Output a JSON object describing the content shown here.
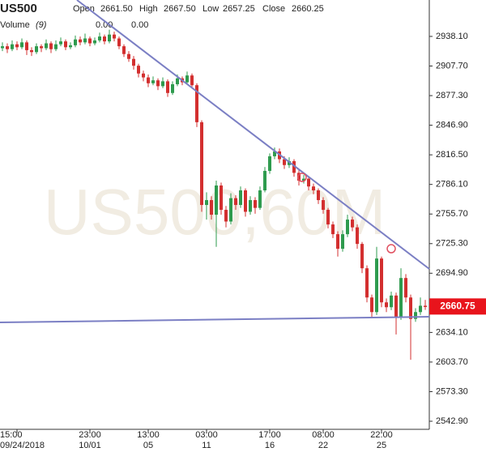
{
  "chart_data": {
    "type": "candlestick",
    "symbol": "US500",
    "watermark": "US500,60M",
    "ohlc_labels": [
      "Open",
      "High",
      "Low",
      "Close"
    ],
    "ohlc_values": [
      2661.5,
      2667.5,
      2657.25,
      2660.25
    ],
    "ohlc_value_labels": [
      "2661.50",
      "2667.50",
      "2657.25",
      "2660.25"
    ],
    "volume_label": "Volume",
    "volume_period": "(9)",
    "volume_values": [
      0,
      0
    ],
    "volume_value_labels": [
      "0.00",
      "0.00"
    ],
    "volume_colors": [
      "#f08080",
      "#5577cc"
    ],
    "up_color": "#2e9b4e",
    "down_color": "#d32f2f",
    "grid": false,
    "xlim": [
      -0.5,
      87.83
    ],
    "ylim": [
      2534.6,
      2975.5
    ],
    "yticks": [
      {
        "value": 2938.1,
        "label": "2938.10"
      },
      {
        "value": 2907.7,
        "label": "2907.70"
      },
      {
        "value": 2877.3,
        "label": "2877.30"
      },
      {
        "value": 2846.9,
        "label": "2846.90"
      },
      {
        "value": 2816.5,
        "label": "2816.50"
      },
      {
        "value": 2786.1,
        "label": "2786.10"
      },
      {
        "value": 2755.7,
        "label": "2755.70"
      },
      {
        "value": 2725.3,
        "label": "2725.30"
      },
      {
        "value": 2694.9,
        "label": "2694.90"
      },
      {
        "value": 2664.5,
        "label": "2664.50"
      },
      {
        "value": 2634.1,
        "label": "2634.10"
      },
      {
        "value": 2603.7,
        "label": "2603.70"
      },
      {
        "value": 2573.3,
        "label": "2573.30"
      },
      {
        "value": 2542.9,
        "label": "2542.90"
      }
    ],
    "xticks": [
      {
        "value": 3,
        "label": "15:00"
      },
      {
        "value": 18,
        "label": "23:00"
      },
      {
        "value": 30,
        "label": "13:00"
      },
      {
        "value": 42,
        "label": "03:00"
      },
      {
        "value": 55,
        "label": "17:00"
      },
      {
        "value": 66,
        "label": "08:00"
      },
      {
        "value": 78,
        "label": "22:00"
      }
    ],
    "xtick_dates": [
      "09/24/2018",
      "10/01",
      "05",
      "11",
      "16",
      "22",
      "25"
    ],
    "candles": [
      [
        2926,
        2932,
        2923,
        2928
      ],
      [
        2928,
        2931,
        2921,
        2925
      ],
      [
        2925,
        2934,
        2923,
        2930
      ],
      [
        2930,
        2933,
        2924,
        2927
      ],
      [
        2927,
        2936,
        2925,
        2932
      ],
      [
        2932,
        2934,
        2919,
        2924
      ],
      [
        2924,
        2927,
        2918,
        2922
      ],
      [
        2922,
        2931,
        2920,
        2928
      ],
      [
        2928,
        2930,
        2922,
        2926
      ],
      [
        2926,
        2935,
        2924,
        2931
      ],
      [
        2931,
        2933,
        2921,
        2925
      ],
      [
        2925,
        2934,
        2923,
        2930
      ],
      [
        2930,
        2937,
        2928,
        2933
      ],
      [
        2933,
        2935,
        2924,
        2927
      ],
      [
        2927,
        2932,
        2925,
        2929
      ],
      [
        2929,
        2939,
        2927,
        2935
      ],
      [
        2935,
        2938,
        2929,
        2932
      ],
      [
        2932,
        2941,
        2930,
        2936
      ],
      [
        2936,
        2938,
        2928,
        2931
      ],
      [
        2931,
        2937,
        2929,
        2934
      ],
      [
        2934,
        2942,
        2932,
        2938
      ],
      [
        2938,
        2940,
        2930,
        2933
      ],
      [
        2933,
        2945,
        2931,
        2940
      ],
      [
        2940,
        2943,
        2933,
        2936
      ],
      [
        2936,
        2938,
        2925,
        2928
      ],
      [
        2928,
        2930,
        2917,
        2920
      ],
      [
        2920,
        2923,
        2912,
        2915
      ],
      [
        2915,
        2918,
        2904,
        2908
      ],
      [
        2908,
        2910,
        2896,
        2900
      ],
      [
        2900,
        2903,
        2892,
        2896
      ],
      [
        2896,
        2899,
        2886,
        2890
      ],
      [
        2890,
        2897,
        2888,
        2893
      ],
      [
        2893,
        2895,
        2883,
        2887
      ],
      [
        2887,
        2896,
        2885,
        2892
      ],
      [
        2892,
        2894,
        2876,
        2880
      ],
      [
        2880,
        2892,
        2878,
        2889
      ],
      [
        2889,
        2899,
        2887,
        2895
      ],
      [
        2895,
        2897,
        2888,
        2891
      ],
      [
        2891,
        2902,
        2889,
        2898
      ],
      [
        2898,
        2900,
        2885,
        2888
      ],
      [
        2888,
        2890,
        2845,
        2850
      ],
      [
        2850,
        2852,
        2758,
        2765
      ],
      [
        2765,
        2778,
        2750,
        2770
      ],
      [
        2770,
        2774,
        2750,
        2755
      ],
      [
        2755,
        2790,
        2722,
        2785
      ],
      [
        2785,
        2788,
        2755,
        2760
      ],
      [
        2760,
        2764,
        2742,
        2748
      ],
      [
        2748,
        2777,
        2745,
        2772
      ],
      [
        2772,
        2775,
        2760,
        2765
      ],
      [
        2765,
        2784,
        2762,
        2780
      ],
      [
        2780,
        2782,
        2753,
        2758
      ],
      [
        2758,
        2774,
        2755,
        2770
      ],
      [
        2770,
        2773,
        2756,
        2762
      ],
      [
        2762,
        2784,
        2760,
        2780
      ],
      [
        2780,
        2804,
        2778,
        2800
      ],
      [
        2800,
        2818,
        2797,
        2815
      ],
      [
        2815,
        2824,
        2812,
        2820
      ],
      [
        2820,
        2823,
        2808,
        2812
      ],
      [
        2812,
        2815,
        2802,
        2806
      ],
      [
        2806,
        2814,
        2803,
        2810
      ],
      [
        2810,
        2812,
        2794,
        2798
      ],
      [
        2798,
        2801,
        2785,
        2790
      ],
      [
        2790,
        2796,
        2787,
        2792
      ],
      [
        2792,
        2794,
        2780,
        2784
      ],
      [
        2784,
        2787,
        2776,
        2780
      ],
      [
        2780,
        2782,
        2766,
        2770
      ],
      [
        2770,
        2773,
        2756,
        2760
      ],
      [
        2760,
        2762,
        2741,
        2745
      ],
      [
        2745,
        2748,
        2731,
        2735
      ],
      [
        2735,
        2738,
        2712,
        2720
      ],
      [
        2720,
        2739,
        2717,
        2735
      ],
      [
        2735,
        2755,
        2732,
        2750
      ],
      [
        2750,
        2753,
        2738,
        2742
      ],
      [
        2742,
        2745,
        2720,
        2725
      ],
      [
        2725,
        2727,
        2695,
        2700
      ],
      [
        2700,
        2703,
        2665,
        2670
      ],
      [
        2670,
        2673,
        2650,
        2655
      ],
      [
        2655,
        2722,
        2652,
        2710
      ],
      [
        2710,
        2712,
        2660,
        2665
      ],
      [
        2665,
        2669,
        2655,
        2660
      ],
      [
        2660,
        2676,
        2657,
        2672
      ],
      [
        2672,
        2675,
        2632,
        2650
      ],
      [
        2650,
        2700,
        2647,
        2690
      ],
      [
        2690,
        2694,
        2665,
        2670
      ],
      [
        2670,
        2673,
        2606,
        2648
      ],
      [
        2648,
        2659,
        2645,
        2655
      ],
      [
        2655,
        2670,
        2652,
        2661.5
      ],
      [
        2661.5,
        2667.5,
        2657.25,
        2660.25
      ]
    ],
    "trendlines": [
      {
        "x": [
          15.33,
          87.83
        ],
        "y": [
          2975.5,
          2699.3
        ],
        "color": "#7b7fc4"
      },
      {
        "x": [
          -0.5,
          87.83
        ],
        "y": [
          2644.4,
          2650.2
        ],
        "color": "#7b7fc4"
      }
    ],
    "markers": {
      "x": [
        61.67,
        80
      ],
      "y": [
        2793.3,
        2720.1
      ],
      "color": "#e05060"
    },
    "current_price": 2660.75,
    "current_price_color": "#e8141c"
  }
}
